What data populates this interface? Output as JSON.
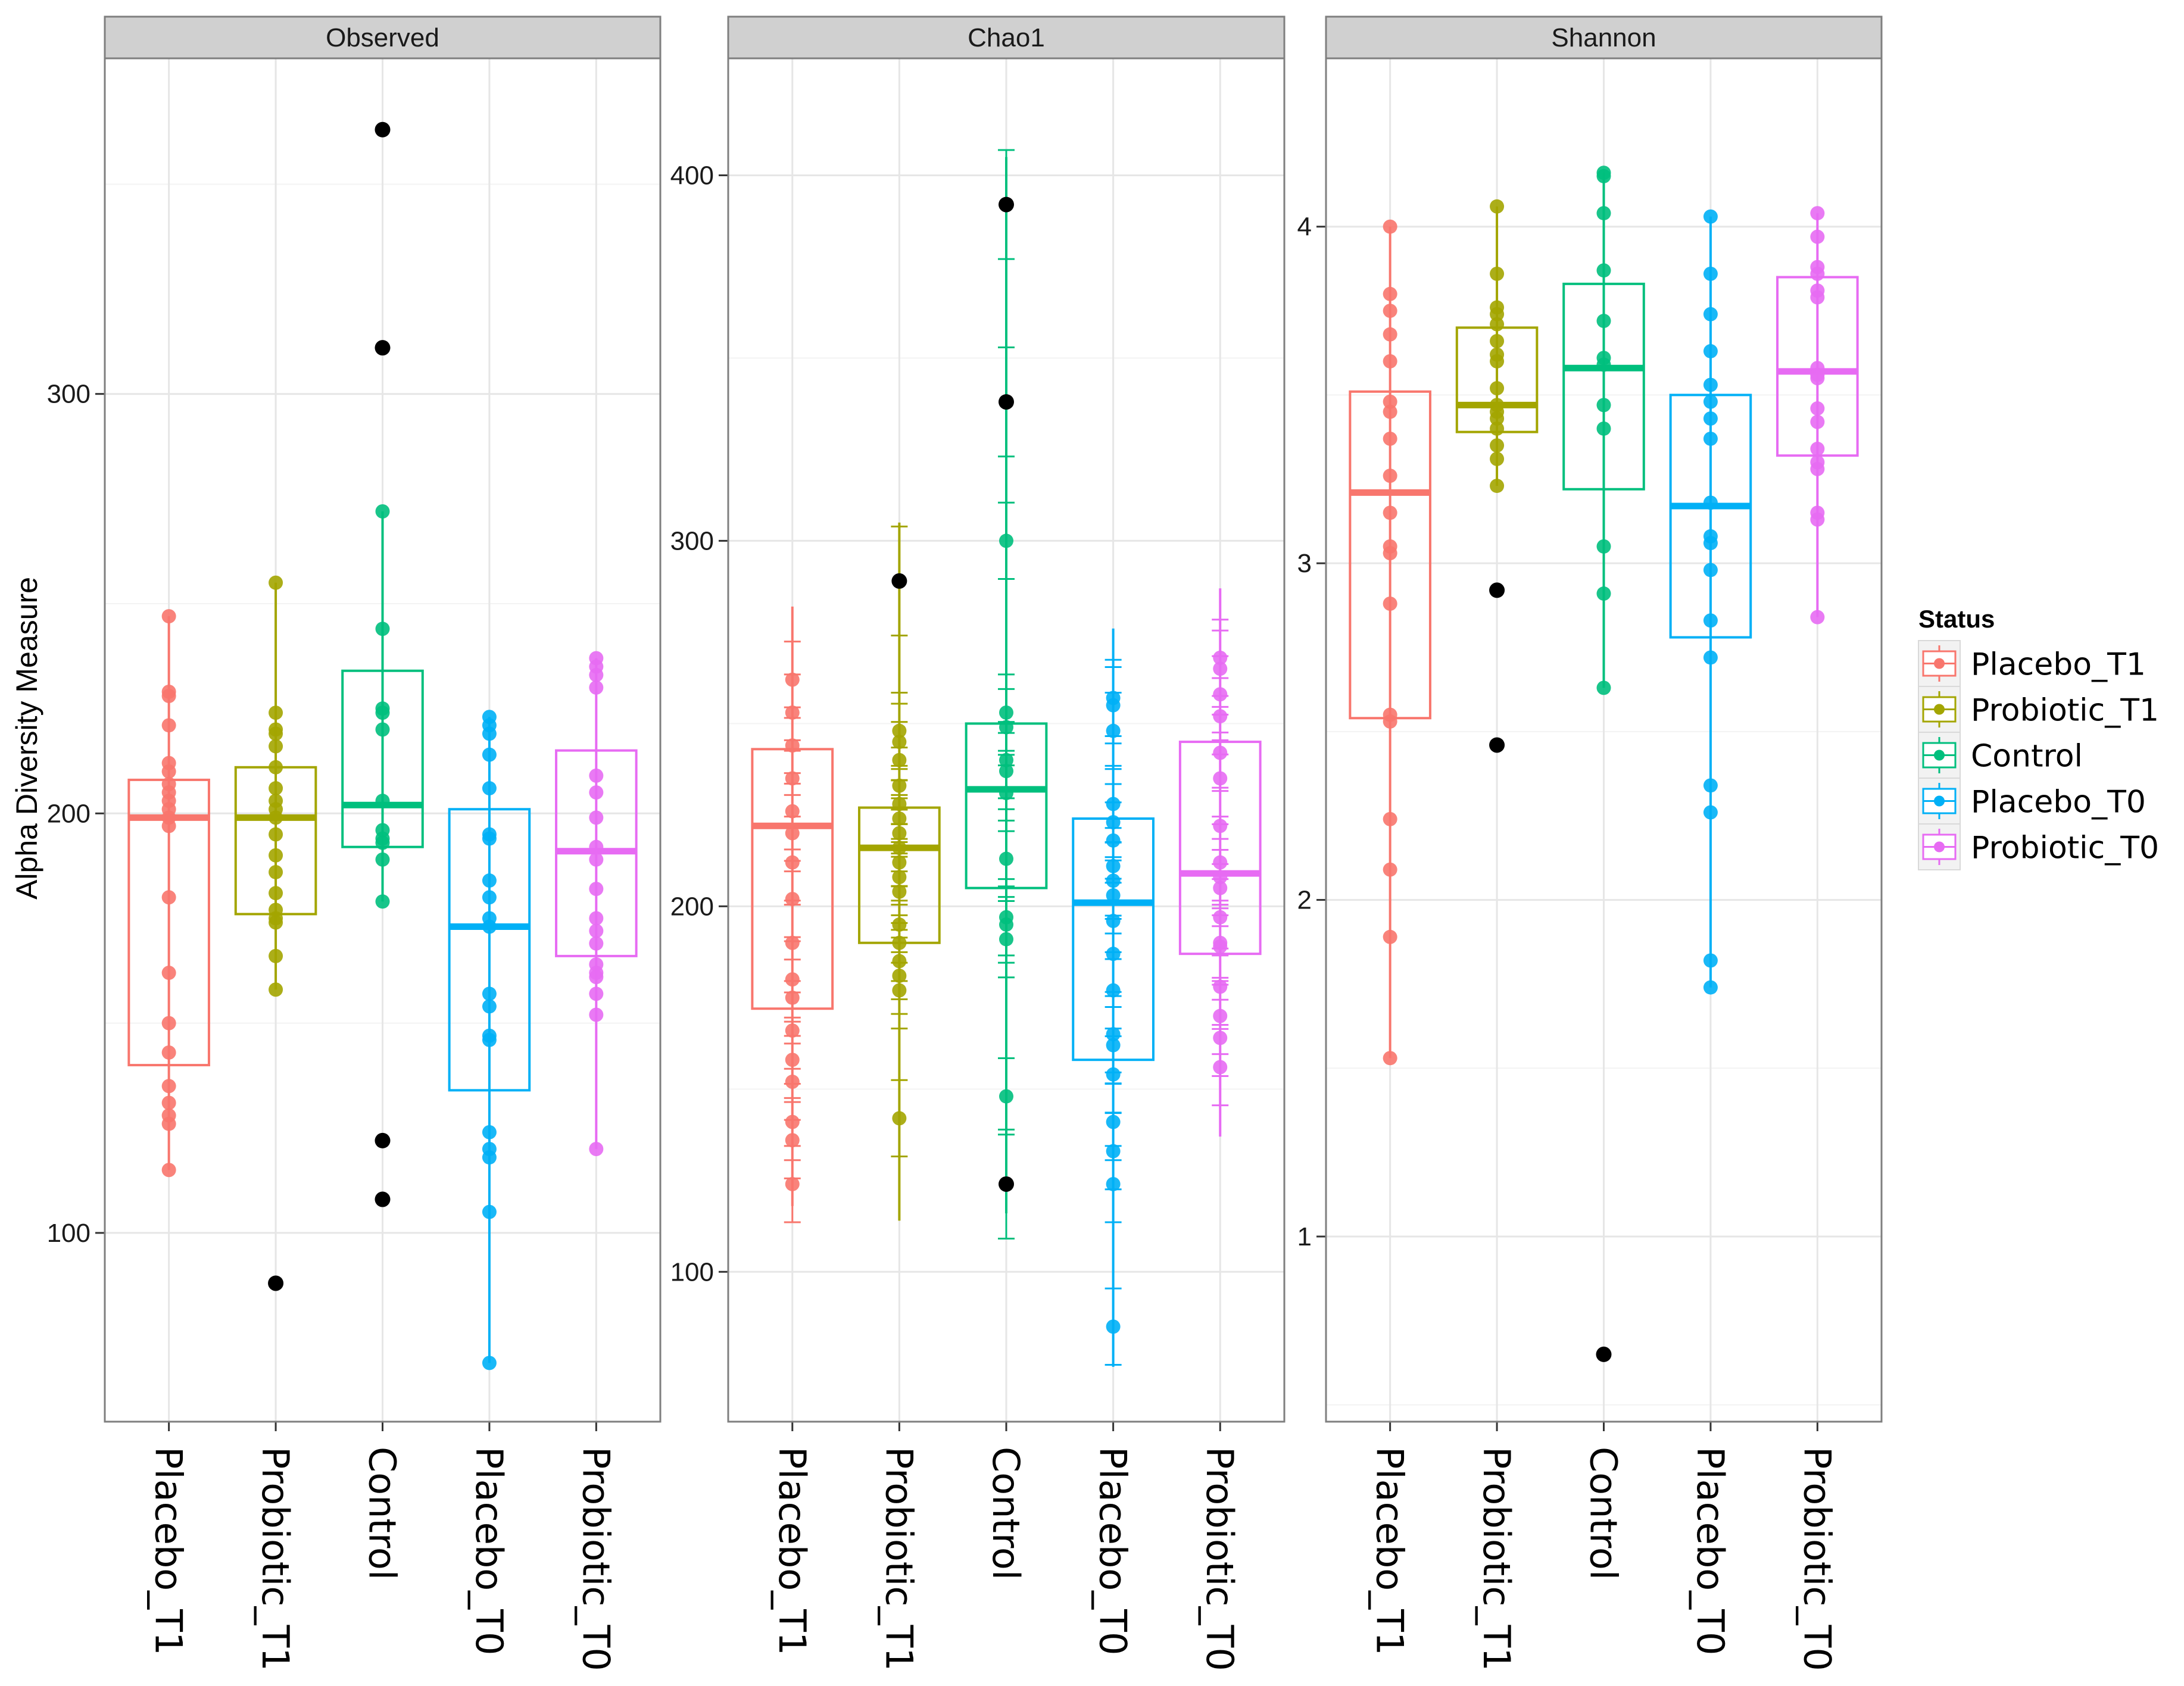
{
  "chart_data": {
    "type": "box",
    "ylabel": "Alpha Diversity Measure",
    "xlabel": "",
    "categories": [
      "Placebo_T1",
      "Probiotic_T1",
      "Control",
      "Placebo_T0",
      "Probiotic_T0"
    ],
    "legend": {
      "title": "Status",
      "position": "right",
      "entries": [
        {
          "label": "Placebo_T1",
          "color": "#F8766D"
        },
        {
          "label": "Probiotic_T1",
          "color": "#A3A500"
        },
        {
          "label": "Control",
          "color": "#00BF7D"
        },
        {
          "label": "Placebo_T0",
          "color": "#00B0F6"
        },
        {
          "label": "Probiotic_T0",
          "color": "#E76BF3"
        }
      ]
    },
    "outlier_color": "#000000",
    "grid": true,
    "panels": [
      {
        "title": "Observed",
        "ylim": [
          55,
          380
        ],
        "yticks": [
          100,
          200,
          300
        ],
        "error_bars": false,
        "groups": [
          {
            "category": "Placebo_T1",
            "q1": 140,
            "median": 199,
            "q3": 208,
            "whisker_low": 115,
            "whisker_high": 247,
            "points": [
              247,
              229,
              228,
              221,
              212,
              210,
              207,
              205,
              203,
              201,
              199,
              197,
              180,
              162,
              150,
              143,
              135,
              131,
              128,
              126,
              115
            ],
            "outliers": []
          },
          {
            "category": "Probiotic_T1",
            "q1": 176,
            "median": 199,
            "q3": 211,
            "whisker_low": 158,
            "whisker_high": 255,
            "points": [
              255,
              224,
              220,
              219,
              216,
              211,
              206,
              203,
              201,
              199,
              195,
              190,
              186,
              181,
              177,
              175,
              174,
              166,
              158
            ],
            "outliers": [
              88
            ]
          },
          {
            "category": "Control",
            "q1": 192,
            "median": 202,
            "q3": 234,
            "whisker_low": 179,
            "whisker_high": 272,
            "points": [
              272,
              244,
              225,
              224,
              220,
              203,
              196,
              194,
              193,
              189,
              179
            ],
            "outliers": [
              363,
              311,
              122,
              108
            ]
          },
          {
            "category": "Placebo_T0",
            "q1": 134,
            "median": 173,
            "q3": 201,
            "whisker_low": 69,
            "whisker_high": 223,
            "points": [
              223,
              221,
              219,
              214,
              206,
              195,
              194,
              184,
              180,
              175,
              173,
              157,
              154,
              147,
              146,
              124,
              120,
              118,
              105,
              69
            ],
            "outliers": []
          },
          {
            "category": "Probiotic_T0",
            "q1": 166,
            "median": 191,
            "q3": 215,
            "whisker_low": 120,
            "whisker_high": 237,
            "points": [
              237,
              235,
              233,
              230,
              209,
              205,
              199,
              192,
              189,
              182,
              175,
              172,
              169,
              164,
              162,
              161,
              157,
              152,
              120
            ],
            "outliers": []
          }
        ]
      },
      {
        "title": "Chao1",
        "ylim": [
          59,
          432
        ],
        "yticks": [
          100,
          200,
          300,
          400
        ],
        "error_bars": true,
        "groups": [
          {
            "category": "Placebo_T1",
            "q1": 172,
            "median": 222,
            "q3": 243,
            "whisker_low": 118,
            "whisker_high": 282,
            "points": [
              262,
              253,
              244,
              235,
              226,
              220,
              212,
              202,
              190,
              180,
              175,
              166,
              158,
              152,
              141,
              136,
              124
            ],
            "outliers": []
          },
          {
            "category": "Probiotic_T1",
            "q1": 190,
            "median": 216,
            "q3": 227,
            "whisker_low": 114,
            "whisker_high": 305,
            "points": [
              248,
              245,
              240,
              233,
              228,
              224,
              220,
              216,
              212,
              208,
              204,
              195,
              190,
              185,
              181,
              177,
              142
            ],
            "outliers": [
              289
            ]
          },
          {
            "category": "Control",
            "q1": 205,
            "median": 232,
            "q3": 250,
            "whisker_low": 116,
            "whisker_high": 405,
            "points": [
              300,
              253,
              249,
              240,
              237,
              231,
              213,
              197,
              195,
              191,
              148
            ],
            "outliers": [
              392,
              338,
              124
            ]
          },
          {
            "category": "Placebo_T0",
            "q1": 158,
            "median": 201,
            "q3": 224,
            "whisker_low": 74,
            "whisker_high": 276,
            "points": [
              257,
              255,
              248,
              228,
              223,
              218,
              211,
              207,
              203,
              196,
              187,
              177,
              165,
              162,
              154,
              141,
              133,
              124,
              85
            ],
            "outliers": []
          },
          {
            "category": "Probiotic_T0",
            "q1": 187,
            "median": 209,
            "q3": 245,
            "whisker_low": 137,
            "whisker_high": 287,
            "points": [
              268,
              265,
              258,
              252,
              242,
              235,
              222,
              212,
              208,
              205,
              197,
              190,
              189,
              178,
              170,
              164,
              156
            ],
            "outliers": []
          }
        ]
      },
      {
        "title": "Shannon",
        "ylim": [
          0.45,
          4.5
        ],
        "yticks": [
          1,
          2,
          3,
          4
        ],
        "error_bars": false,
        "groups": [
          {
            "category": "Placebo_T1",
            "q1": 2.54,
            "median": 3.21,
            "q3": 3.51,
            "whisker_low": 1.53,
            "whisker_high": 4.0,
            "points": [
              4.0,
              3.8,
              3.75,
              3.68,
              3.6,
              3.48,
              3.45,
              3.37,
              3.26,
              3.15,
              3.05,
              3.03,
              2.88,
              2.55,
              2.53,
              2.24,
              2.09,
              1.89,
              1.53
            ],
            "outliers": []
          },
          {
            "category": "Probiotic_T1",
            "q1": 3.39,
            "median": 3.47,
            "q3": 3.7,
            "whisker_low": 3.23,
            "whisker_high": 4.06,
            "points": [
              4.06,
              3.86,
              3.76,
              3.74,
              3.71,
              3.66,
              3.62,
              3.6,
              3.52,
              3.47,
              3.45,
              3.43,
              3.4,
              3.35,
              3.31,
              3.23
            ],
            "outliers": [
              2.92,
              2.46
            ]
          },
          {
            "category": "Control",
            "q1": 3.22,
            "median": 3.58,
            "q3": 3.83,
            "whisker_low": 2.63,
            "whisker_high": 4.16,
            "points": [
              4.16,
              4.15,
              4.04,
              3.87,
              3.72,
              3.61,
              3.59,
              3.47,
              3.4,
              3.05,
              2.91,
              2.63
            ],
            "outliers": [
              0.65
            ]
          },
          {
            "category": "Placebo_T0",
            "q1": 2.78,
            "median": 3.17,
            "q3": 3.5,
            "whisker_low": 1.74,
            "whisker_high": 4.03,
            "points": [
              4.03,
              3.86,
              3.74,
              3.63,
              3.53,
              3.48,
              3.43,
              3.37,
              3.18,
              3.08,
              3.06,
              2.98,
              2.83,
              2.72,
              2.34,
              2.26,
              1.82,
              1.74
            ],
            "outliers": []
          },
          {
            "category": "Probiotic_T0",
            "q1": 3.32,
            "median": 3.57,
            "q3": 3.85,
            "whisker_low": 2.84,
            "whisker_high": 4.04,
            "points": [
              4.04,
              3.97,
              3.88,
              3.86,
              3.81,
              3.79,
              3.58,
              3.56,
              3.55,
              3.46,
              3.42,
              3.34,
              3.3,
              3.28,
              3.15,
              3.13,
              2.84
            ],
            "outliers": []
          }
        ]
      }
    ]
  }
}
